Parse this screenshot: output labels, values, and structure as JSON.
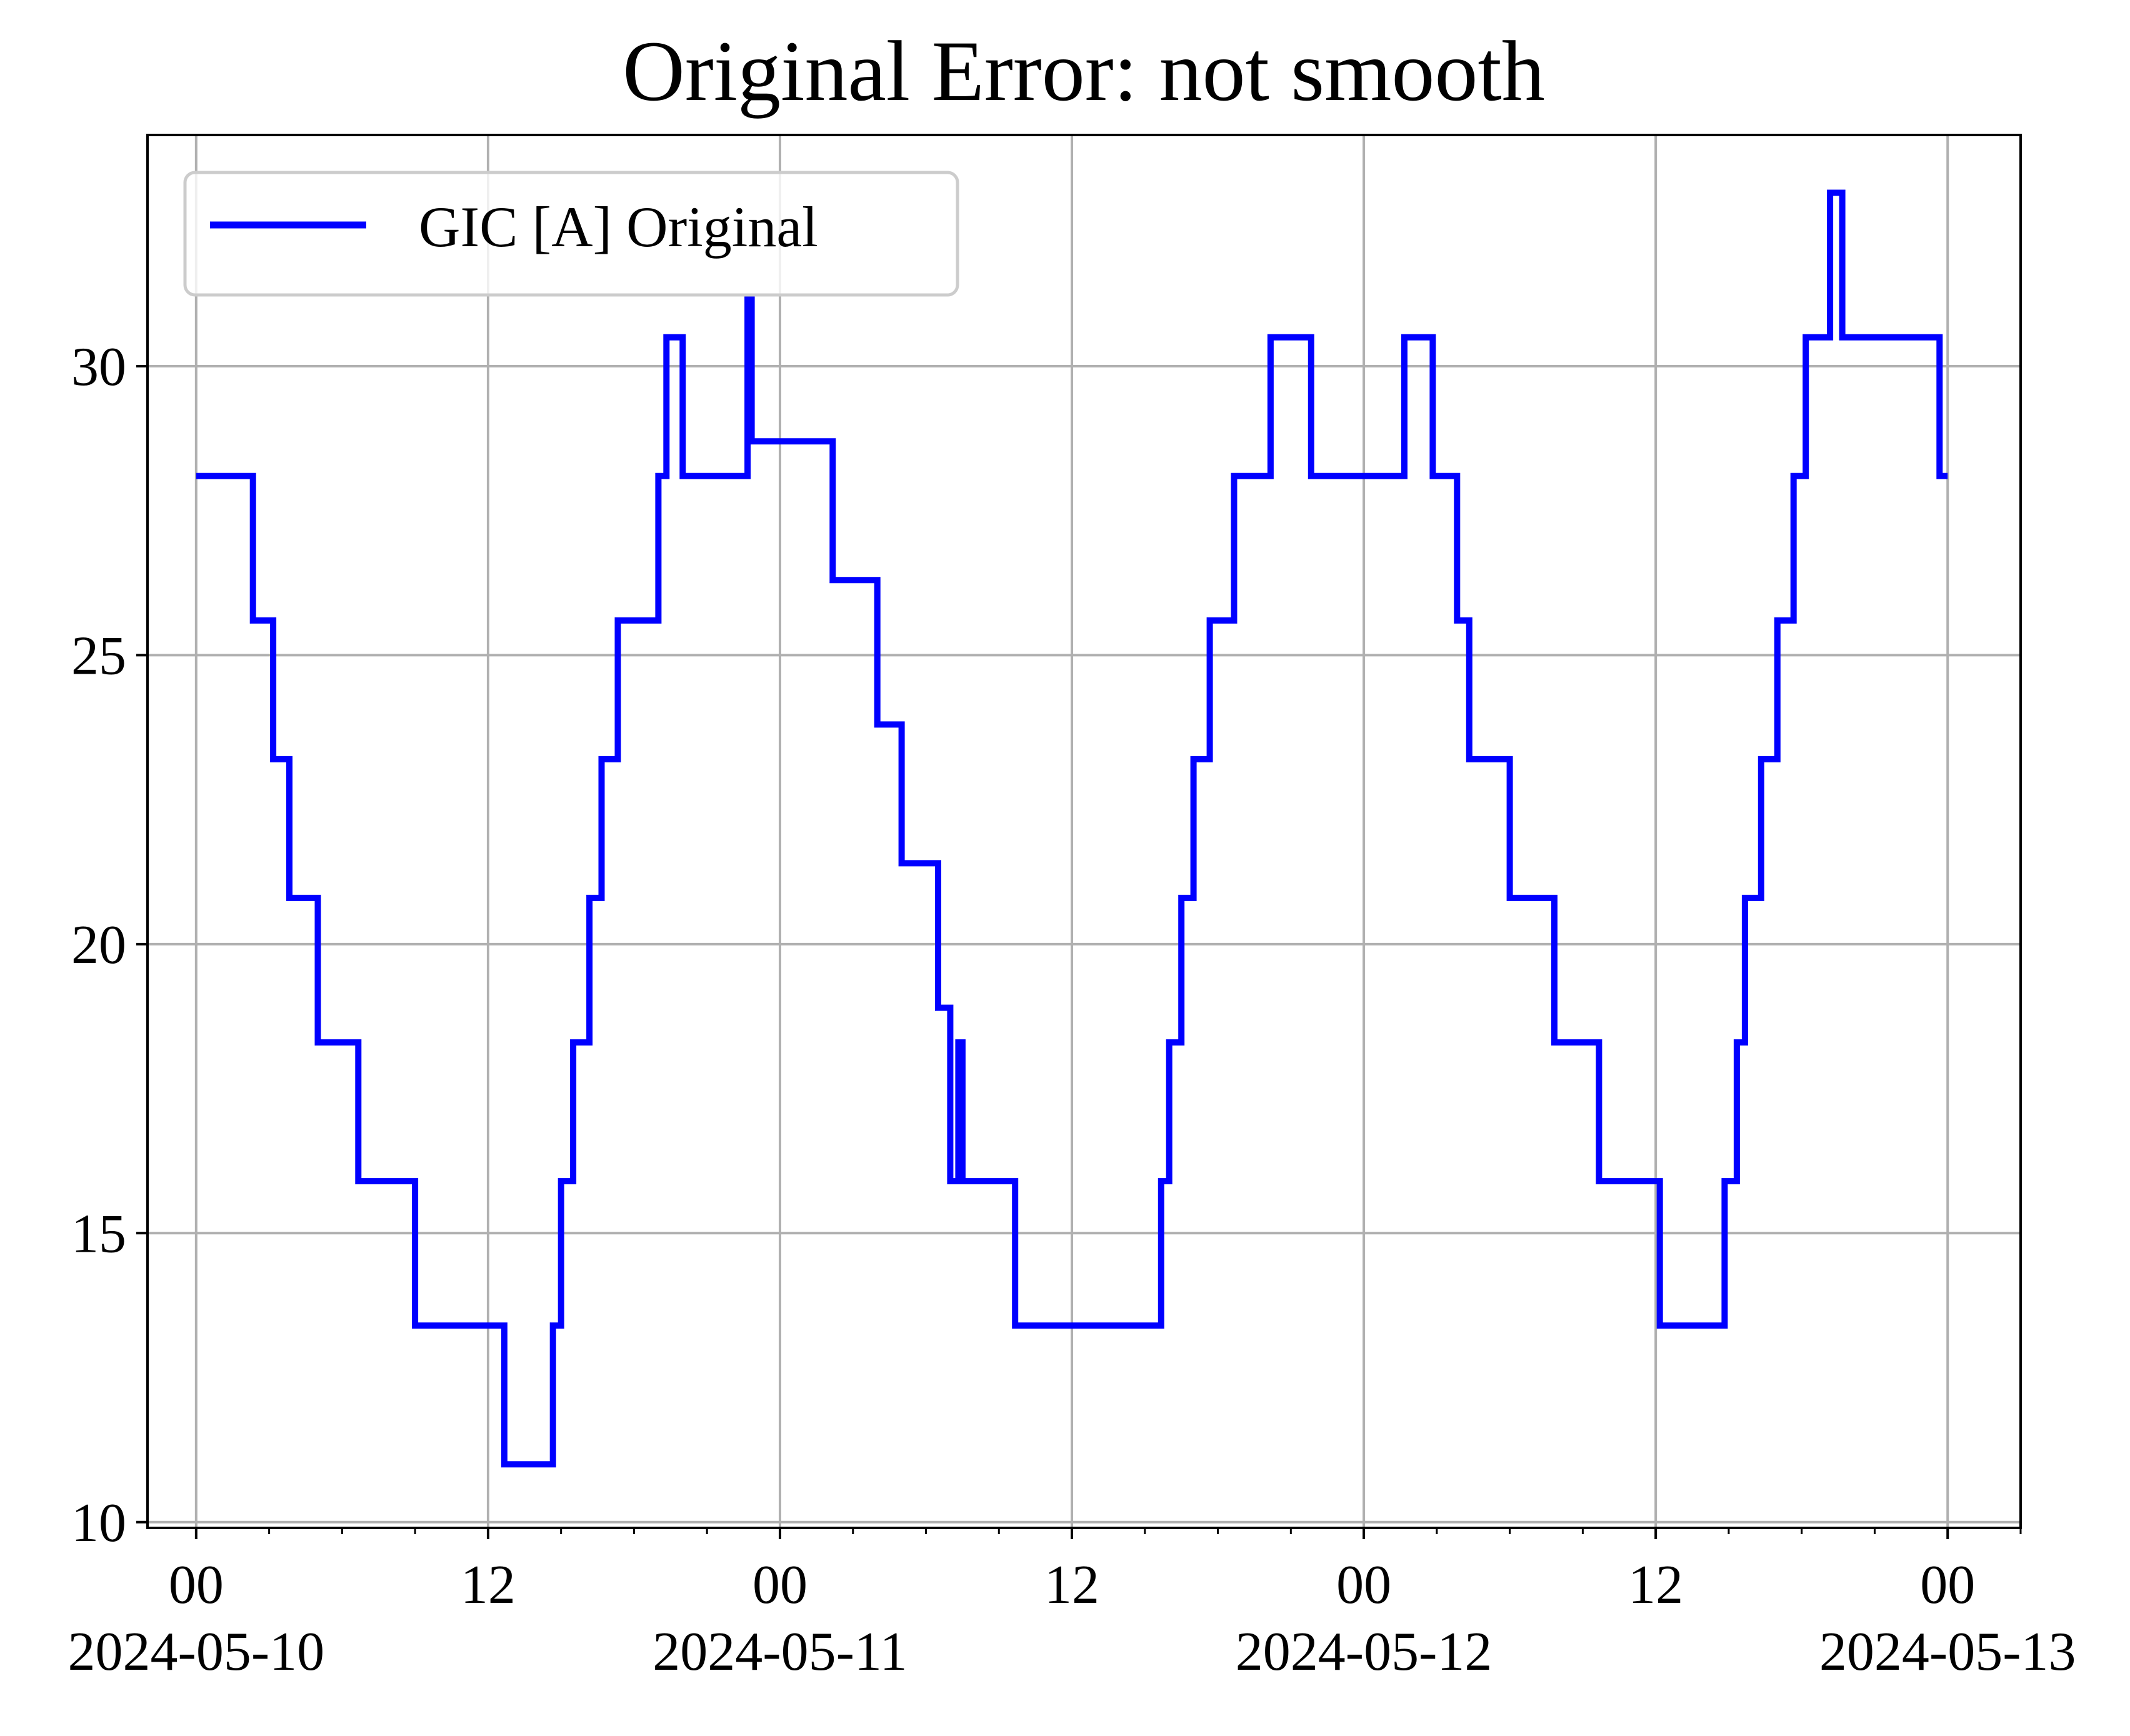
{
  "chart_data": {
    "type": "line",
    "title": "Original Error: not smooth",
    "xlabel": "",
    "ylabel": "",
    "x_axis": {
      "type": "datetime",
      "range": [
        "2024-05-09T22:00",
        "2024-05-13T03:00"
      ],
      "major_ticks": [
        {
          "at": "2024-05-10T00:00",
          "line1": "00",
          "line2": "2024-05-10"
        },
        {
          "at": "2024-05-10T12:00",
          "line1": "12",
          "line2": ""
        },
        {
          "at": "2024-05-11T00:00",
          "line1": "00",
          "line2": "2024-05-11"
        },
        {
          "at": "2024-05-11T12:00",
          "line1": "12",
          "line2": ""
        },
        {
          "at": "2024-05-12T00:00",
          "line1": "00",
          "line2": "2024-05-12"
        },
        {
          "at": "2024-05-12T12:00",
          "line1": "12",
          "line2": ""
        },
        {
          "at": "2024-05-13T00:00",
          "line1": "00",
          "line2": "2024-05-13"
        }
      ],
      "minor_tick_interval_hours": 3
    },
    "y_axis": {
      "range": [
        9.9,
        34.0
      ],
      "ticks": [
        10,
        15,
        20,
        25,
        30
      ]
    },
    "grid": true,
    "legend": {
      "position": "top-left"
    },
    "series": [
      {
        "name": "GIC [A] Original",
        "color": "#0000ff",
        "step": "post",
        "x": [
          "2024-05-10T00:00",
          "2024-05-10T02:20",
          "2024-05-10T03:10",
          "2024-05-10T03:50",
          "2024-05-10T05:00",
          "2024-05-10T06:40",
          "2024-05-10T09:00",
          "2024-05-10T12:40",
          "2024-05-10T14:40",
          "2024-05-10T15:00",
          "2024-05-10T15:30",
          "2024-05-10T16:10",
          "2024-05-10T16:40",
          "2024-05-10T17:20",
          "2024-05-10T19:00",
          "2024-05-10T19:20",
          "2024-05-10T20:00",
          "2024-05-10T22:40",
          "2024-05-10T22:50",
          "2024-05-11T02:10",
          "2024-05-11T04:00",
          "2024-05-11T05:00",
          "2024-05-11T06:30",
          "2024-05-11T07:00",
          "2024-05-11T07:20",
          "2024-05-11T07:30",
          "2024-05-11T07:40",
          "2024-05-11T09:40",
          "2024-05-11T15:40",
          "2024-05-11T16:00",
          "2024-05-11T16:30",
          "2024-05-11T17:00",
          "2024-05-11T17:40",
          "2024-05-11T18:40",
          "2024-05-11T20:10",
          "2024-05-11T21:50",
          "2024-05-12T01:40",
          "2024-05-12T02:50",
          "2024-05-12T03:50",
          "2024-05-12T04:20",
          "2024-05-12T06:00",
          "2024-05-12T07:50",
          "2024-05-12T09:40",
          "2024-05-12T12:10",
          "2024-05-12T14:50",
          "2024-05-12T15:20",
          "2024-05-12T15:40",
          "2024-05-12T16:20",
          "2024-05-12T17:00",
          "2024-05-12T17:40",
          "2024-05-12T18:10",
          "2024-05-12T19:10",
          "2024-05-12T19:40",
          "2024-05-12T20:00",
          "2024-05-12T23:40",
          "2024-05-13T00:00"
        ],
        "y": [
          28.1,
          25.6,
          23.2,
          20.8,
          18.3,
          15.9,
          13.4,
          11.0,
          13.4,
          15.9,
          18.3,
          20.8,
          23.2,
          25.6,
          28.1,
          30.5,
          28.1,
          31.2,
          28.7,
          26.3,
          23.8,
          21.4,
          18.9,
          15.9,
          18.3,
          15.9,
          15.9,
          13.4,
          15.9,
          18.3,
          20.8,
          23.2,
          25.6,
          28.1,
          30.5,
          28.1,
          30.5,
          28.1,
          25.6,
          23.2,
          20.8,
          18.3,
          15.9,
          13.4,
          15.9,
          18.3,
          20.8,
          23.2,
          25.6,
          28.1,
          30.5,
          33.0,
          30.5,
          30.5,
          28.1,
          28.1
        ]
      }
    ]
  }
}
